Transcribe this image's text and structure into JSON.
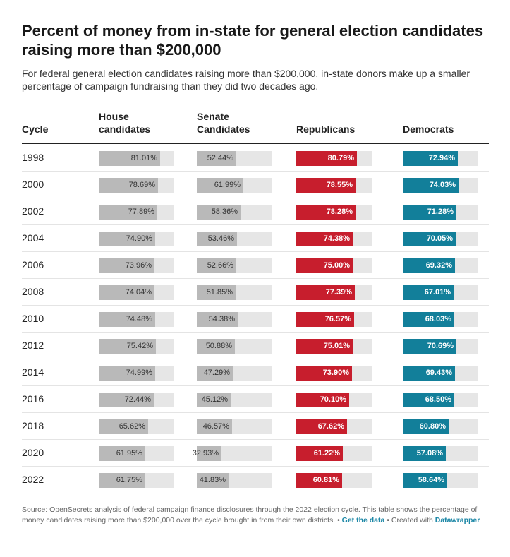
{
  "title": "Percent of money from in-state for general election candidates raising more than $200,000",
  "subtitle": "For federal general election candidates raising more than $200,000, in-state donors make up a smaller percentage of campaign fundraising than they did two decades ago.",
  "footer": {
    "source_text": "Source: OpenSecrets analysis of federal campaign finance disclosures through the 2022 election cycle. This table shows the percentage of money candidates raising more than $200,000 over the cycle brought in from their own districts.",
    "separator": " • ",
    "get_data_label": "Get the data",
    "created_with_label": "Created with",
    "tool_label": "Datawrapper"
  },
  "colors": {
    "house": "#b9b9b9",
    "senate": "#b9b9b9",
    "republicans": "#c71e2d",
    "democrats": "#127f9a",
    "bar_background": "#e6e6e6",
    "link": "#1c87a6"
  },
  "chart_data": {
    "type": "table",
    "title": "Percent of money from in-state for general election candidates raising more than $200,000",
    "columns": [
      "Cycle",
      "House\ncandidates",
      "Senate\nCandidates",
      "Republicans",
      "Democrats"
    ],
    "rows": [
      {
        "cycle": "1998",
        "house": 81.01,
        "senate": 52.44,
        "republicans": 80.79,
        "democrats": 72.94
      },
      {
        "cycle": "2000",
        "house": 78.69,
        "senate": 61.99,
        "republicans": 78.55,
        "democrats": 74.03
      },
      {
        "cycle": "2002",
        "house": 77.89,
        "senate": 58.36,
        "republicans": 78.28,
        "democrats": 71.28
      },
      {
        "cycle": "2004",
        "house": 74.9,
        "senate": 53.46,
        "republicans": 74.38,
        "democrats": 70.05
      },
      {
        "cycle": "2006",
        "house": 73.96,
        "senate": 52.66,
        "republicans": 75.0,
        "democrats": 69.32
      },
      {
        "cycle": "2008",
        "house": 74.04,
        "senate": 51.85,
        "republicans": 77.39,
        "democrats": 67.01
      },
      {
        "cycle": "2010",
        "house": 74.48,
        "senate": 54.38,
        "republicans": 76.57,
        "democrats": 68.03
      },
      {
        "cycle": "2012",
        "house": 75.42,
        "senate": 50.88,
        "republicans": 75.01,
        "democrats": 70.69
      },
      {
        "cycle": "2014",
        "house": 74.99,
        "senate": 47.29,
        "republicans": 73.9,
        "democrats": 69.43
      },
      {
        "cycle": "2016",
        "house": 72.44,
        "senate": 45.12,
        "republicans": 70.1,
        "democrats": 68.5
      },
      {
        "cycle": "2018",
        "house": 65.62,
        "senate": 46.57,
        "republicans": 67.62,
        "democrats": 60.8
      },
      {
        "cycle": "2020",
        "house": 61.95,
        "senate": 32.93,
        "republicans": 61.22,
        "democrats": 57.08
      },
      {
        "cycle": "2022",
        "house": 61.75,
        "senate": 41.83,
        "republicans": 60.81,
        "democrats": 58.64
      }
    ],
    "value_suffix": "%",
    "bar_scale_max": 100
  }
}
